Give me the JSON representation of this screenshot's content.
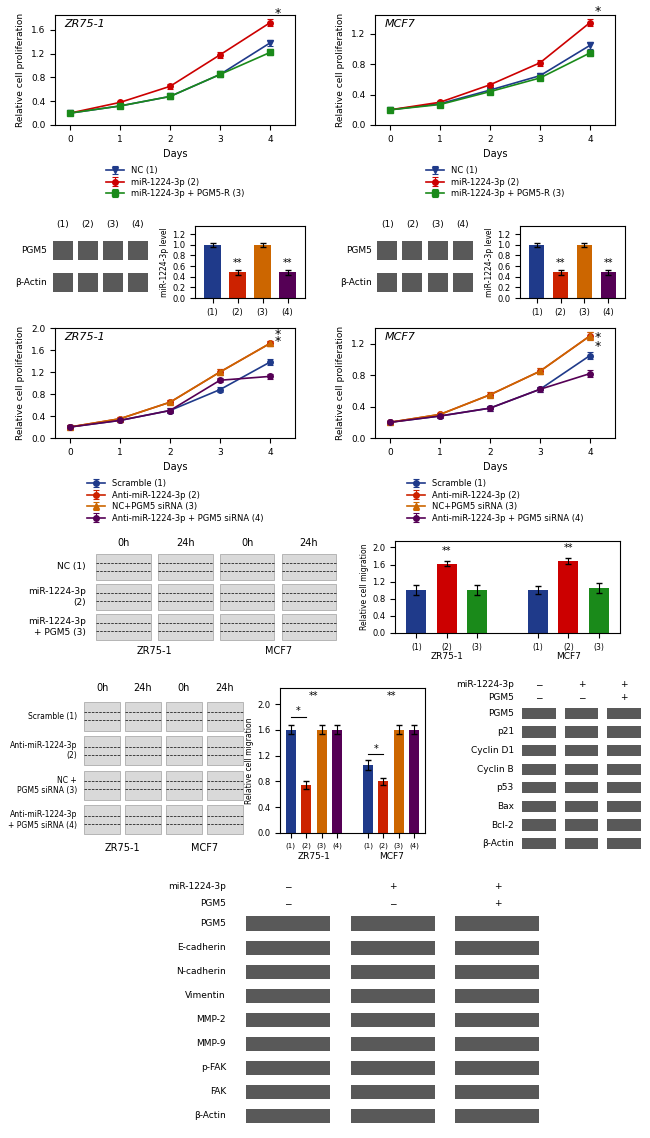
{
  "chart_data": [
    {
      "type": "line",
      "title": "ZR75-1",
      "x_label": "Days",
      "y_label": "Relative cell proliferation",
      "x": [
        0,
        1,
        2,
        3,
        4
      ],
      "xlim": [
        -0.3,
        4.5
      ],
      "xticks": [
        0,
        1,
        2,
        3,
        4
      ],
      "ylim": [
        0,
        1.85
      ],
      "yticks": [
        {
          "value": 0,
          "label": "0.0"
        },
        0.4,
        0.8,
        1.2,
        1.6
      ],
      "legend": "below",
      "series": [
        {
          "name": "NC (1)",
          "color": "#1f3a8a",
          "marker": "triangle_down",
          "values": [
            0.2,
            0.32,
            0.48,
            0.85,
            1.38
          ],
          "errors": [
            0.03,
            0.03,
            0.04,
            0.04,
            0.05
          ]
        },
        {
          "name": "miR-1224-3p (2)",
          "color": "#cc0000",
          "marker": "circle",
          "values": [
            0.2,
            0.38,
            0.65,
            1.18,
            1.72
          ],
          "errors": [
            0.03,
            0.03,
            0.04,
            0.05,
            0.06
          ]
        },
        {
          "name": "miR-1224-3p + PGM5-R (3)",
          "color": "#1a8a1a",
          "marker": "square",
          "values": [
            0.2,
            0.32,
            0.48,
            0.85,
            1.22
          ],
          "errors": [
            0.03,
            0.03,
            0.04,
            0.04,
            0.05
          ]
        }
      ],
      "annotations": [
        {
          "text": "*",
          "x": 4,
          "y": 1.87
        }
      ]
    },
    {
      "type": "line",
      "title": "MCF7",
      "x_label": "Days",
      "y_label": "Relative cell proliferation",
      "x": [
        0,
        1,
        2,
        3,
        4
      ],
      "xlim": [
        -0.3,
        4.5
      ],
      "xticks": [
        0,
        1,
        2,
        3,
        4
      ],
      "ylim": [
        0,
        1.45
      ],
      "yticks": [
        {
          "value": 0,
          "label": "0.0"
        },
        0.4,
        0.8,
        1.2
      ],
      "legend": "below",
      "series": [
        {
          "name": "NC (1)",
          "color": "#1f3a8a",
          "marker": "triangle_down",
          "values": [
            0.2,
            0.28,
            0.46,
            0.65,
            1.05
          ],
          "errors": [
            0.02,
            0.02,
            0.03,
            0.03,
            0.05
          ]
        },
        {
          "name": "miR-1224-3p (2)",
          "color": "#cc0000",
          "marker": "circle",
          "values": [
            0.2,
            0.3,
            0.53,
            0.82,
            1.35
          ],
          "errors": [
            0.02,
            0.02,
            0.03,
            0.04,
            0.05
          ]
        },
        {
          "name": "miR-1224-3p + PGM5-R (3)",
          "color": "#1a8a1a",
          "marker": "square",
          "values": [
            0.2,
            0.27,
            0.44,
            0.62,
            0.95
          ],
          "errors": [
            0.02,
            0.02,
            0.03,
            0.03,
            0.04
          ]
        }
      ],
      "annotations": [
        {
          "text": "*",
          "x": 4,
          "y": 1.49
        }
      ]
    },
    {
      "type": "blot",
      "columns": [
        "(1)",
        "(2)",
        "(3)",
        "(4)"
      ],
      "rows": [
        "PGM5",
        "β-Actin"
      ]
    },
    {
      "type": "bar",
      "y_label": "miR-1224-3p level",
      "categories": [
        "(1)",
        "(2)",
        "(3)",
        "(4)"
      ],
      "values": [
        1.0,
        0.48,
        1.0,
        0.48
      ],
      "errors": [
        0.04,
        0.05,
        0.04,
        0.05
      ],
      "colors": [
        "#1f3a8a",
        "#cc2200",
        "#cc6600",
        "#550055"
      ],
      "ylim": [
        0,
        1.35
      ],
      "yticks": [
        {
          "value": 0,
          "label": "0.0"
        },
        0.2,
        0.4,
        0.6,
        0.8,
        {
          "value": 1,
          "label": "1.0"
        },
        1.2
      ],
      "annotations": [
        {
          "text": "**",
          "x": "(2)",
          "y": 0.57
        },
        {
          "text": "**",
          "x": "(4)",
          "y": 0.57
        }
      ]
    },
    {
      "type": "blot",
      "columns": [
        "(1)",
        "(2)",
        "(3)",
        "(4)"
      ],
      "rows": [
        "PGM5",
        "β-Actin"
      ]
    },
    {
      "type": "bar",
      "y_label": "miR-1224-3p level",
      "categories": [
        "(1)",
        "(2)",
        "(3)",
        "(4)"
      ],
      "values": [
        1.0,
        0.48,
        1.0,
        0.48
      ],
      "errors": [
        0.04,
        0.05,
        0.04,
        0.05
      ],
      "colors": [
        "#1f3a8a",
        "#cc2200",
        "#cc6600",
        "#550055"
      ],
      "ylim": [
        0,
        1.35
      ],
      "yticks": [
        {
          "value": 0,
          "label": "0.0"
        },
        0.2,
        0.4,
        0.6,
        0.8,
        {
          "value": 1,
          "label": "1.0"
        },
        1.2
      ],
      "annotations": [
        {
          "text": "**",
          "x": "(2)",
          "y": 0.57
        },
        {
          "text": "**",
          "x": "(4)",
          "y": 0.57
        }
      ]
    },
    {
      "type": "line",
      "title": "ZR75-1",
      "x_label": "Days",
      "y_label": "Relative cell proliferation",
      "x": [
        0,
        1,
        2,
        3,
        4
      ],
      "xlim": [
        -0.3,
        4.5
      ],
      "xticks": [
        0,
        1,
        2,
        3,
        4
      ],
      "ylim": [
        0,
        2.0
      ],
      "yticks": [
        {
          "value": 0,
          "label": "0.0"
        },
        0.4,
        0.8,
        1.2,
        1.6,
        {
          "value": 2,
          "label": "2.0"
        }
      ],
      "legend": "below",
      "series": [
        {
          "name": "Scramble (1)",
          "color": "#1f3a8a",
          "marker": "circle",
          "values": [
            0.2,
            0.32,
            0.5,
            0.88,
            1.38
          ],
          "errors": [
            0.03,
            0.03,
            0.04,
            0.04,
            0.05
          ]
        },
        {
          "name": "Anti-miR-1224-3p (2)",
          "color": "#cc2200",
          "marker": "circle",
          "values": [
            0.2,
            0.35,
            0.65,
            1.2,
            1.72
          ],
          "errors": [
            0.03,
            0.03,
            0.04,
            0.05,
            0.05
          ]
        },
        {
          "name": "NC+PGM5 siRNA (3)",
          "color": "#cc6600",
          "marker": "triangle_up",
          "values": [
            0.2,
            0.35,
            0.65,
            1.2,
            1.72
          ],
          "errors": [
            0.03,
            0.03,
            0.04,
            0.05,
            0.05
          ]
        },
        {
          "name": "Anti-miR-1224-3p + PGM5 siRNA (4)",
          "color": "#550055",
          "marker": "circle",
          "values": [
            0.2,
            0.32,
            0.5,
            1.05,
            1.12
          ],
          "errors": [
            0.03,
            0.03,
            0.04,
            0.04,
            0.05
          ]
        }
      ],
      "annotations": [
        {
          "text": "*",
          "x": 4,
          "y": 1.88
        },
        {
          "text": "*",
          "x": 4,
          "y": 1.76
        }
      ]
    },
    {
      "type": "line",
      "title": "MCF7",
      "x_label": "Days",
      "y_label": "Relative cell proliferation",
      "x": [
        0,
        1,
        2,
        3,
        4
      ],
      "xlim": [
        -0.3,
        4.5
      ],
      "xticks": [
        0,
        1,
        2,
        3,
        4
      ],
      "ylim": [
        0,
        1.4
      ],
      "yticks": [
        {
          "value": 0,
          "label": "0.0"
        },
        0.4,
        0.8,
        1.2
      ],
      "legend": "below",
      "series": [
        {
          "name": "Scramble (1)",
          "color": "#1f3a8a",
          "marker": "circle",
          "values": [
            0.2,
            0.28,
            0.38,
            0.62,
            1.05
          ],
          "errors": [
            0.02,
            0.02,
            0.03,
            0.03,
            0.05
          ]
        },
        {
          "name": "Anti-miR-1224-3p (2)",
          "color": "#cc2200",
          "marker": "circle",
          "values": [
            0.2,
            0.3,
            0.55,
            0.85,
            1.3
          ],
          "errors": [
            0.02,
            0.02,
            0.03,
            0.04,
            0.05
          ]
        },
        {
          "name": "NC+PGM5 siRNA (3)",
          "color": "#cc6600",
          "marker": "triangle_up",
          "values": [
            0.2,
            0.3,
            0.55,
            0.85,
            1.3
          ],
          "errors": [
            0.02,
            0.02,
            0.03,
            0.04,
            0.05
          ]
        },
        {
          "name": "Anti-miR-1224-3p + PGM5 siRNA (4)",
          "color": "#550055",
          "marker": "circle",
          "values": [
            0.2,
            0.28,
            0.38,
            0.62,
            0.82
          ],
          "errors": [
            0.02,
            0.02,
            0.03,
            0.03,
            0.04
          ]
        }
      ],
      "annotations": [
        {
          "text": "*",
          "x": 4,
          "y": 1.28
        },
        {
          "text": "*",
          "x": 4,
          "y": 1.16
        }
      ]
    },
    {
      "type": "scratch",
      "columns": [
        "0h",
        "24h",
        "0h",
        "24h"
      ],
      "groups": [
        "ZR75-1",
        "MCF7"
      ],
      "rows": [
        "NC (1)",
        "miR-1224-3p\n(2)",
        "miR-1224-3p\n+ PGM5 (3)"
      ]
    },
    {
      "type": "bar",
      "y_label": "Relative cell migration",
      "groups": [
        {
          "name": "ZR75-1",
          "categories": [
            "(1)",
            "(2)",
            "(3)"
          ],
          "values": [
            1.0,
            1.62,
            1.0
          ],
          "errors": [
            0.12,
            0.06,
            0.12
          ]
        },
        {
          "name": "MCF7",
          "categories": [
            "(1)",
            "(2)",
            "(3)"
          ],
          "values": [
            1.0,
            1.68,
            1.05
          ],
          "errors": [
            0.1,
            0.07,
            0.12
          ]
        }
      ],
      "colors": [
        "#1f3a8a",
        "#cc0000",
        "#1a8a1a"
      ],
      "ylim": [
        0,
        2.15
      ],
      "yticks": [
        {
          "value": 0,
          "label": "0.0"
        },
        0.4,
        0.8,
        1.2,
        1.6,
        {
          "value": 2,
          "label": "2.0"
        }
      ],
      "annotations": [
        {
          "text": "**",
          "group": "ZR75-1",
          "y": 1.8
        },
        {
          "text": "**",
          "group": "MCF7",
          "y": 1.87
        }
      ]
    },
    {
      "type": "scratch",
      "columns": [
        "0h",
        "24h",
        "0h",
        "24h"
      ],
      "groups": [
        "ZR75-1",
        "MCF7"
      ],
      "rows": [
        "Scramble (1)",
        "Anti-miR-1224-3p\n(2)",
        "NC +\nPGM5 siRNA (3)",
        "Anti-miR-1224-3p\n+ PGM5 siRNA (4)"
      ]
    },
    {
      "type": "bar",
      "y_label": "Relative cell migration",
      "groups": [
        {
          "name": "ZR75-1",
          "categories": [
            "(1)",
            "(2)",
            "(3)",
            "(4)"
          ],
          "values": [
            1.6,
            0.75,
            1.6,
            1.6
          ],
          "errors": [
            0.07,
            0.06,
            0.07,
            0.07
          ]
        },
        {
          "name": "MCF7",
          "categories": [
            "(1)",
            "(2)",
            "(3)",
            "(4)"
          ],
          "values": [
            1.05,
            0.8,
            1.6,
            1.6
          ],
          "errors": [
            0.08,
            0.06,
            0.07,
            0.07
          ]
        }
      ],
      "colors": [
        "#1f3a8a",
        "#cc2200",
        "#cc6600",
        "#550055"
      ],
      "ylim": [
        0,
        2.25
      ],
      "yticks": [
        {
          "value": 0,
          "label": "0.0"
        },
        0.4,
        0.8,
        1.2,
        1.6,
        {
          "value": 2,
          "label": "2.0"
        }
      ],
      "annotations": [
        {
          "text": "**",
          "group": "ZR75-1",
          "y": 2.05
        },
        {
          "text": "**",
          "group": "MCF7",
          "y": 2.05
        },
        {
          "text": "*",
          "group": "ZR75-1",
          "from": "(1)",
          "to": "(2)",
          "y": 1.8
        },
        {
          "text": "*",
          "group": "MCF7",
          "from": "(1)",
          "to": "(2)",
          "y": 1.22
        }
      ]
    },
    {
      "type": "blot",
      "conditions": [
        {
          "name": "miR-1224-3p",
          "signs": [
            "−",
            "+",
            "+"
          ]
        },
        {
          "name": "PGM5",
          "signs": [
            "−",
            "−",
            "+"
          ]
        }
      ],
      "rows": [
        "PGM5",
        "p21",
        "Cyclin D1",
        "Cyclin B",
        "p53",
        "Bax",
        "Bcl-2",
        "β-Actin"
      ]
    },
    {
      "type": "blot",
      "conditions": [
        {
          "name": "miR-1224-3p",
          "signs": [
            "−",
            "+",
            "+"
          ]
        },
        {
          "name": "PGM5",
          "signs": [
            "−",
            "−",
            "+"
          ]
        }
      ],
      "rows": [
        "PGM5",
        "E-cadherin",
        "N-cadherin",
        "Vimentin",
        "MMP-2",
        "MMP-9",
        "p-FAK",
        "FAK",
        "β-Actin"
      ]
    }
  ]
}
